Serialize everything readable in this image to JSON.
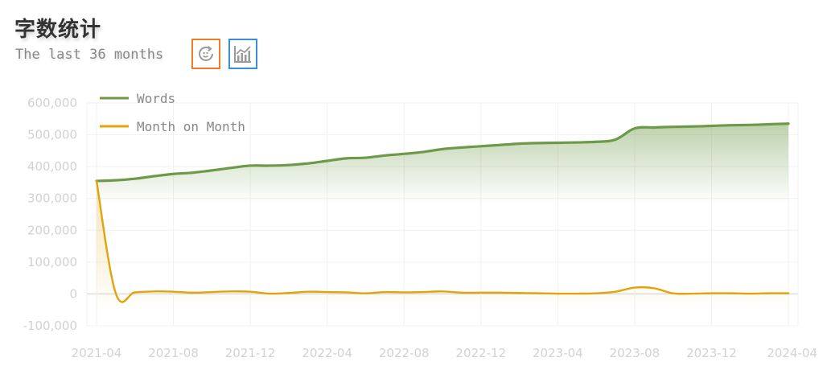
{
  "header": {
    "title": "字数统计",
    "subtitle": "The last 36 months",
    "icons": [
      "refresh-icon",
      "line-chart-icon"
    ]
  },
  "colors": {
    "words": "#6d9a48",
    "mom": "#e4a30b",
    "grid": "#f1f1f1",
    "zero_line": "#cfcfcf",
    "ticks": "#d2d2d2",
    "refresh_border": "#f07c2a",
    "chart_border": "#3a8fd6"
  },
  "chart_data": {
    "type": "line",
    "ylim": [
      -100000,
      600000
    ],
    "yticks": [
      -100000,
      0,
      100000,
      200000,
      300000,
      400000,
      500000,
      600000
    ],
    "ytick_labels": [
      "-100,000",
      "0",
      "100,000",
      "200,000",
      "300,000",
      "400,000",
      "500,000",
      "600,000"
    ],
    "xtick_labels": [
      "2021-04",
      "2021-08",
      "2021-12",
      "2022-04",
      "2022-08",
      "2022-12",
      "2023-04",
      "2023-08",
      "2023-12",
      "2024-04"
    ],
    "x": [
      "2021-04",
      "2021-05",
      "2021-06",
      "2021-07",
      "2021-08",
      "2021-09",
      "2021-10",
      "2021-11",
      "2021-12",
      "2022-01",
      "2022-02",
      "2022-03",
      "2022-04",
      "2022-05",
      "2022-06",
      "2022-07",
      "2022-08",
      "2022-09",
      "2022-10",
      "2022-11",
      "2022-12",
      "2023-01",
      "2023-02",
      "2023-03",
      "2023-04",
      "2023-05",
      "2023-06",
      "2023-07",
      "2023-08",
      "2023-09",
      "2023-10",
      "2023-11",
      "2023-12",
      "2024-01",
      "2024-02",
      "2024-03",
      "2024-04"
    ],
    "legend_position": "top-left",
    "grid": true,
    "series": [
      {
        "name": "Words",
        "color": "#6d9a48",
        "area": true,
        "values": [
          355000,
          357000,
          362000,
          370000,
          377000,
          381000,
          388000,
          396000,
          403000,
          403000,
          405000,
          410000,
          418000,
          426000,
          428000,
          435000,
          440000,
          446000,
          455000,
          460000,
          464000,
          468000,
          472000,
          474000,
          475000,
          476000,
          478000,
          485000,
          520000,
          523000,
          525000,
          526000,
          528000,
          530000,
          531000,
          533000,
          535000
        ]
      },
      {
        "name": "Month on Month",
        "color": "#e4a30b",
        "area": true,
        "values": [
          355000,
          2000,
          5000,
          8000,
          7000,
          4000,
          6000,
          8000,
          7000,
          1000,
          3000,
          7000,
          6000,
          5000,
          2000,
          6000,
          5000,
          6000,
          8000,
          4000,
          4000,
          4000,
          3000,
          2000,
          1000,
          1000,
          2000,
          7000,
          20000,
          18000,
          2000,
          1000,
          2000,
          2000,
          1000,
          2000,
          2000
        ]
      }
    ]
  }
}
